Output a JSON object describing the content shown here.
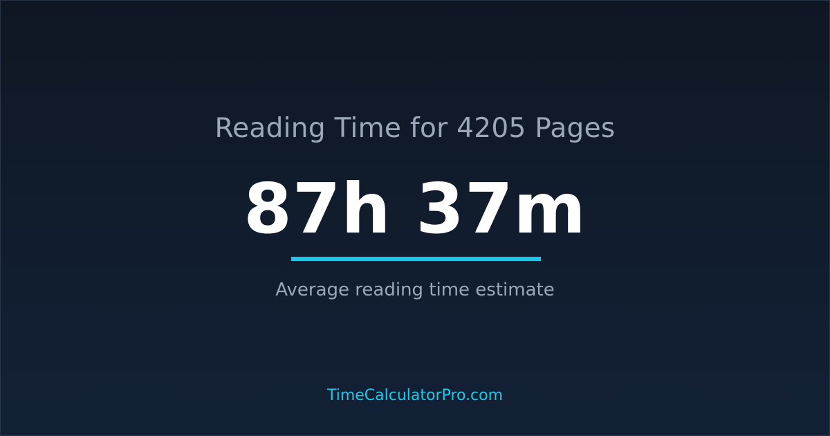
{
  "title": "Reading Time for 4205 Pages",
  "result": "87h 37m",
  "subtitle": "Average reading time estimate",
  "site": "TimeCalculatorPro.com",
  "colors": {
    "accent": "#22c7e8",
    "background": "#0f1723",
    "text_muted": "#9aa8b9"
  }
}
